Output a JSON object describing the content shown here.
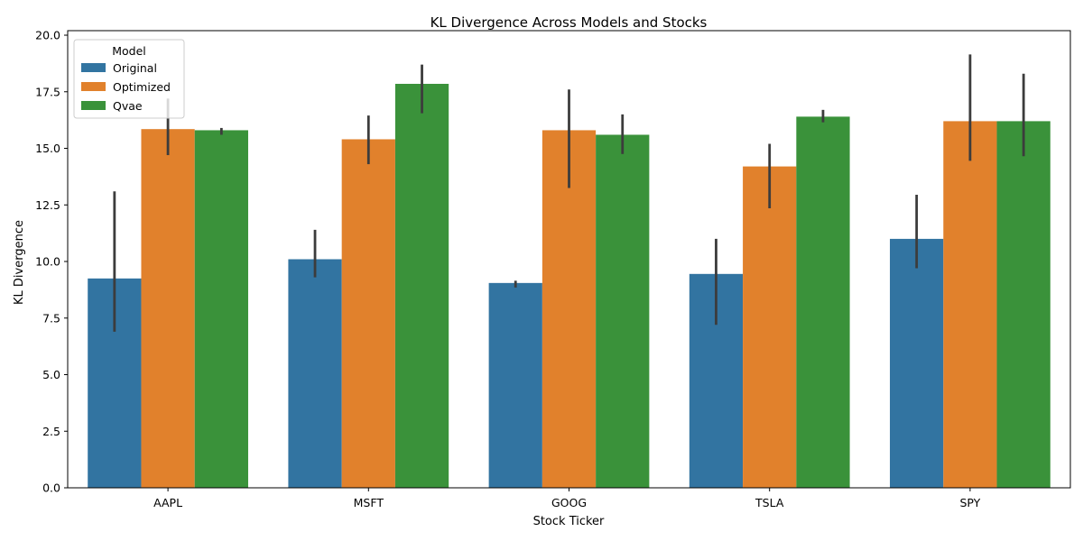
{
  "chart_data": {
    "type": "bar",
    "title": "KL Divergence Across Models and Stocks",
    "xlabel": "Stock Ticker",
    "ylabel": "KL Divergence",
    "ylim": [
      0,
      20.2
    ],
    "yticks": [
      "0.0",
      "2.5",
      "5.0",
      "7.5",
      "10.0",
      "12.5",
      "15.0",
      "17.5",
      "20.0"
    ],
    "categories": [
      "AAPL",
      "MSFT",
      "GOOG",
      "TSLA",
      "SPY"
    ],
    "legend": {
      "title": "Model",
      "position": "top-left"
    },
    "grid": false,
    "series": [
      {
        "name": "Original",
        "color": "#3274a1",
        "values": [
          9.25,
          10.1,
          9.05,
          9.45,
          11.0
        ],
        "err_low": [
          6.9,
          9.3,
          8.85,
          7.2,
          9.7
        ],
        "err_high": [
          13.1,
          11.4,
          9.15,
          11.0,
          12.95
        ]
      },
      {
        "name": "Optimized",
        "color": "#e1812c",
        "values": [
          15.85,
          15.4,
          15.8,
          14.2,
          16.2
        ],
        "err_low": [
          14.7,
          14.3,
          13.25,
          12.35,
          14.45
        ],
        "err_high": [
          17.2,
          16.45,
          17.6,
          15.2,
          19.15
        ]
      },
      {
        "name": "Qvae",
        "color": "#3a923a",
        "values": [
          15.8,
          17.85,
          15.6,
          16.4,
          16.2
        ],
        "err_low": [
          15.6,
          16.55,
          14.75,
          16.15,
          14.65
        ],
        "err_high": [
          15.9,
          18.7,
          16.5,
          16.7,
          18.3
        ]
      }
    ],
    "error_bar_color": "#3c3c3c"
  }
}
